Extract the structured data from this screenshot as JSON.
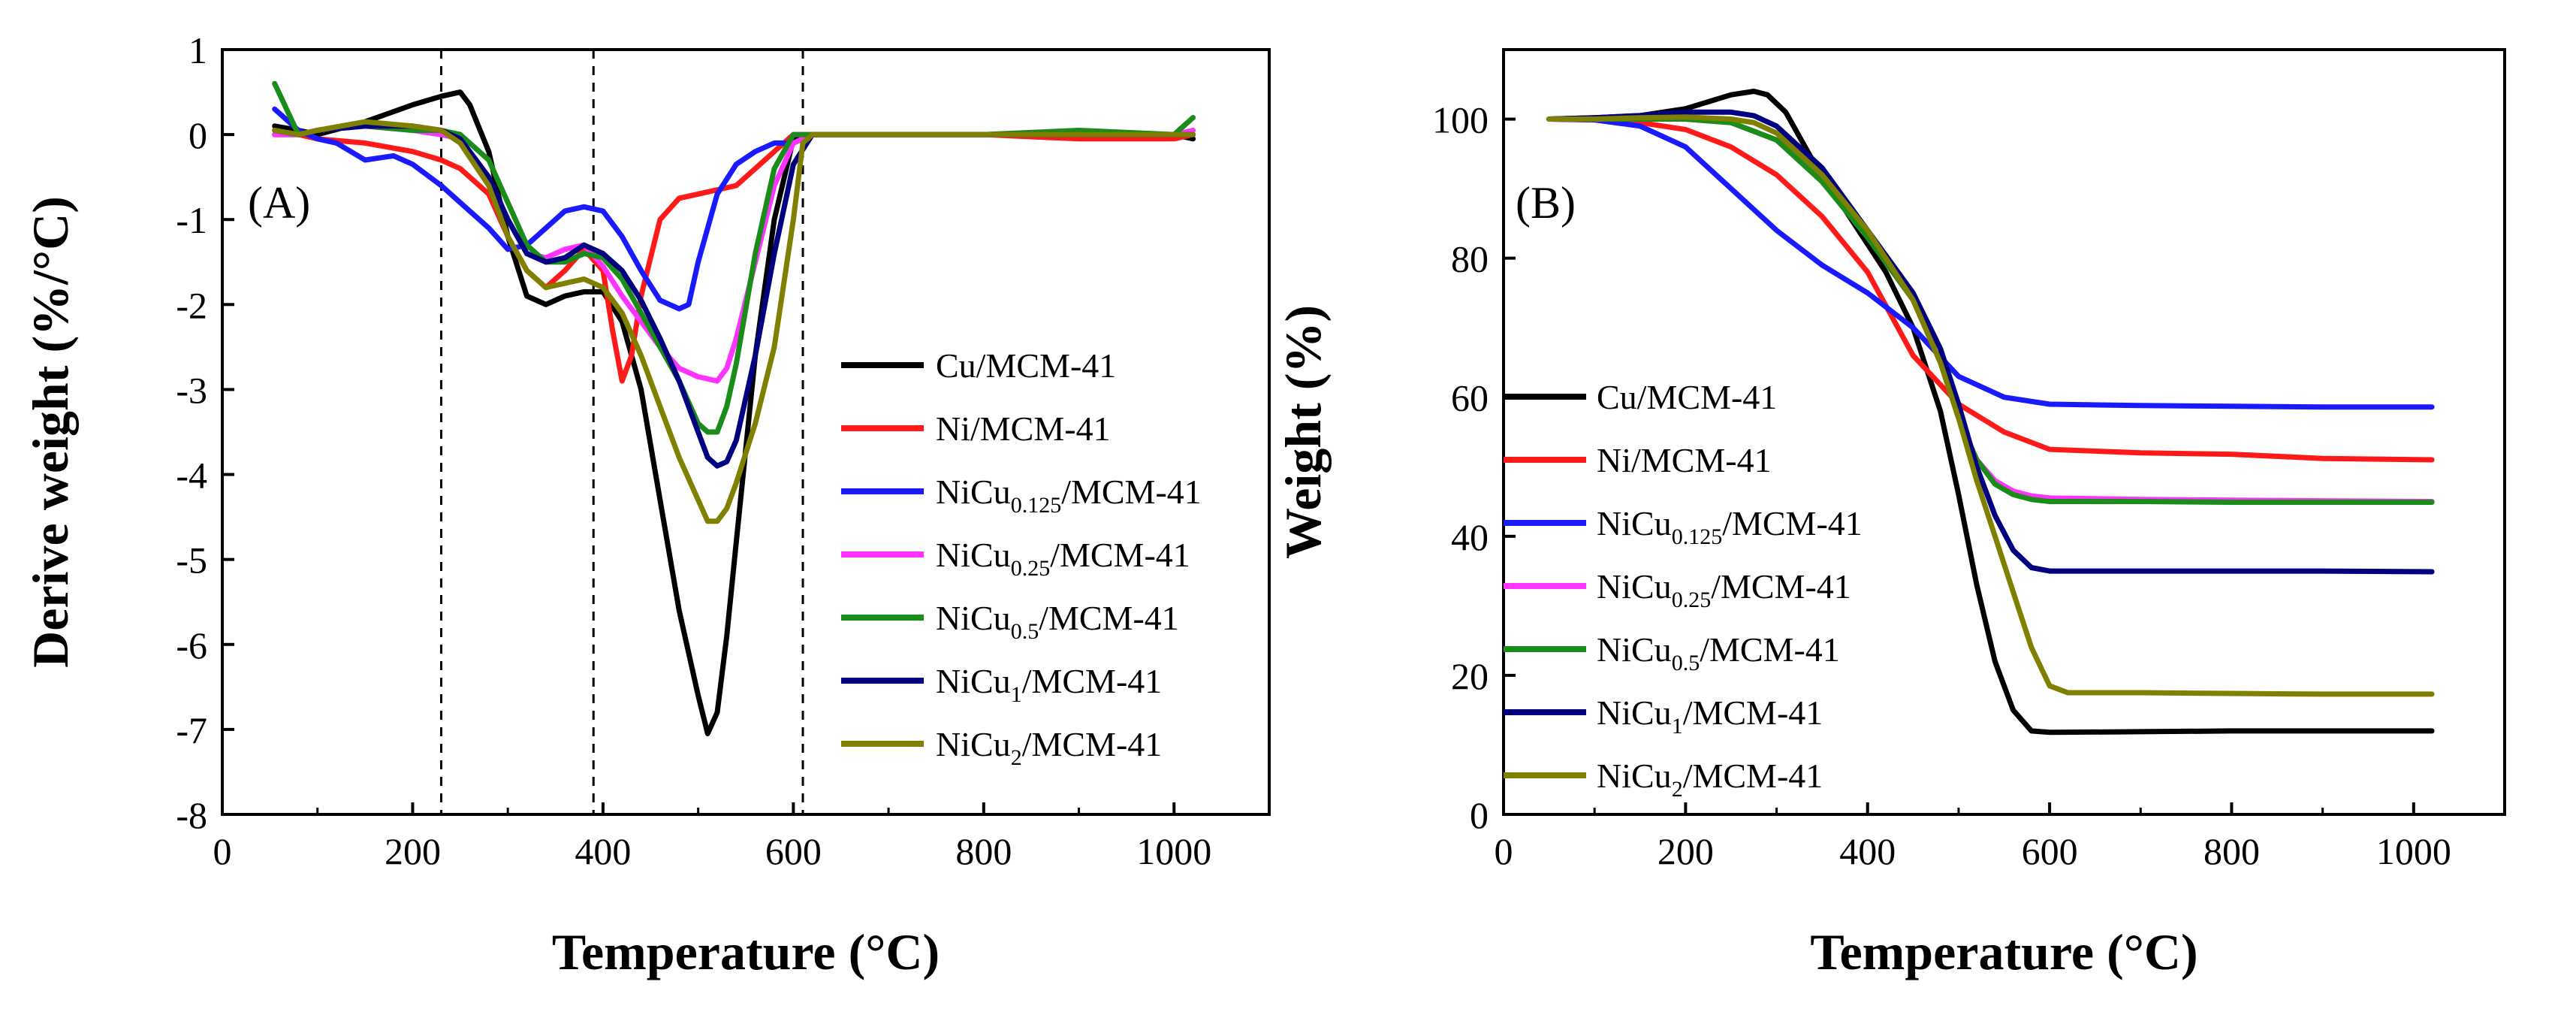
{
  "chart_data": [
    {
      "type": "line",
      "panel_label": "(A)",
      "xlabel": "Temperature (°C)",
      "ylabel": "Derive weight (%/°C)",
      "xlim": [
        0,
        1100
      ],
      "ylim": [
        -8,
        1
      ],
      "xticks": [
        0,
        200,
        400,
        600,
        800,
        1000
      ],
      "xtick_labels": [
        "0",
        "200",
        "400",
        "600",
        "800",
        "1000"
      ],
      "yticks": [
        1,
        0,
        -1,
        -2,
        -3,
        -4,
        -5,
        -6,
        -7,
        -8
      ],
      "ytick_labels": [
        "1",
        "0",
        "-1",
        "-2",
        "-3",
        "-4",
        "-5",
        "-6",
        "-7",
        "-8"
      ],
      "reference_lines_x": [
        230,
        390,
        610
      ],
      "legend_position": "center-right",
      "series": [
        {
          "name": "Cu/MCM-41",
          "parts": [
            {
              "t": "Cu/MCM-41"
            }
          ],
          "color": "#000000",
          "x": [
            55,
            80,
            100,
            150,
            200,
            230,
            250,
            260,
            280,
            300,
            320,
            340,
            360,
            380,
            400,
            420,
            440,
            460,
            480,
            500,
            510,
            520,
            530,
            540,
            560,
            580,
            600,
            620,
            700,
            800,
            900,
            1000,
            1020
          ],
          "y": [
            0.1,
            0.05,
            0,
            0.15,
            0.35,
            0.45,
            0.5,
            0.35,
            -0.2,
            -1.2,
            -1.9,
            -2.0,
            -1.9,
            -1.85,
            -1.85,
            -2.2,
            -3.0,
            -4.3,
            -5.6,
            -6.6,
            -7.05,
            -6.8,
            -5.9,
            -4.8,
            -2.6,
            -1.0,
            -0.05,
            0,
            0,
            0,
            0,
            0,
            -0.05
          ]
        },
        {
          "name": "Ni/MCM-41",
          "parts": [
            {
              "t": "Ni/MCM-41"
            }
          ],
          "color": "#ff1a1a",
          "x": [
            55,
            80,
            100,
            150,
            200,
            230,
            250,
            280,
            300,
            320,
            340,
            360,
            380,
            400,
            410,
            420,
            430,
            440,
            460,
            480,
            500,
            540,
            560,
            580,
            600,
            620,
            700,
            800,
            900,
            1000,
            1020
          ],
          "y": [
            0.0,
            0.0,
            -0.05,
            -0.1,
            -0.2,
            -0.3,
            -0.4,
            -0.7,
            -1.2,
            -1.6,
            -1.8,
            -1.6,
            -1.35,
            -1.6,
            -2.3,
            -2.9,
            -2.6,
            -1.9,
            -1.0,
            -0.75,
            -0.7,
            -0.6,
            -0.4,
            -0.2,
            0.0,
            0.0,
            0.0,
            0.0,
            -0.05,
            -0.05,
            0.0
          ]
        },
        {
          "name": "NiCu0.125/MCM-41",
          "parts": [
            {
              "t": "NiCu"
            },
            {
              "sub": "0.125"
            },
            {
              "t": "/MCM-41"
            }
          ],
          "color": "#1a1aff",
          "x": [
            55,
            80,
            100,
            120,
            150,
            180,
            200,
            230,
            250,
            280,
            300,
            320,
            340,
            360,
            380,
            400,
            420,
            440,
            460,
            480,
            490,
            500,
            520,
            540,
            560,
            580,
            600,
            620,
            700,
            800,
            900,
            1000,
            1020
          ],
          "y": [
            0.3,
            0.05,
            -0.05,
            -0.1,
            -0.3,
            -0.25,
            -0.35,
            -0.6,
            -0.8,
            -1.1,
            -1.35,
            -1.3,
            -1.1,
            -0.9,
            -0.85,
            -0.9,
            -1.2,
            -1.6,
            -1.95,
            -2.05,
            -2.0,
            -1.5,
            -0.7,
            -0.35,
            -0.2,
            -0.1,
            -0.1,
            0.0,
            0.0,
            0.0,
            0.0,
            0.0,
            0.0
          ]
        },
        {
          "name": "NiCu0.25/MCM-41",
          "parts": [
            {
              "t": "NiCu"
            },
            {
              "sub": "0.25"
            },
            {
              "t": "/MCM-41"
            }
          ],
          "color": "#ff33ff",
          "x": [
            55,
            80,
            100,
            150,
            200,
            230,
            250,
            280,
            300,
            320,
            340,
            360,
            380,
            400,
            420,
            440,
            460,
            480,
            500,
            520,
            530,
            540,
            560,
            580,
            600,
            620,
            700,
            800,
            900,
            1000,
            1020
          ],
          "y": [
            0.0,
            0.0,
            0.05,
            0.1,
            0.05,
            0.0,
            -0.05,
            -0.5,
            -1.0,
            -1.4,
            -1.45,
            -1.35,
            -1.3,
            -1.55,
            -1.9,
            -2.2,
            -2.5,
            -2.75,
            -2.85,
            -2.9,
            -2.75,
            -2.4,
            -1.5,
            -0.6,
            -0.1,
            0.0,
            0.0,
            0.0,
            0.0,
            0.0,
            0.05
          ]
        },
        {
          "name": "NiCu0.5/MCM-41",
          "parts": [
            {
              "t": "NiCu"
            },
            {
              "sub": "0.5"
            },
            {
              "t": "/MCM-41"
            }
          ],
          "color": "#1a8c1a",
          "x": [
            55,
            80,
            100,
            150,
            200,
            230,
            250,
            280,
            300,
            320,
            340,
            360,
            380,
            400,
            420,
            440,
            460,
            480,
            500,
            510,
            520,
            530,
            540,
            560,
            580,
            600,
            620,
            700,
            800,
            900,
            1000,
            1020
          ],
          "y": [
            0.6,
            0.0,
            0.05,
            0.1,
            0.05,
            0.05,
            0.0,
            -0.3,
            -0.8,
            -1.3,
            -1.5,
            -1.5,
            -1.4,
            -1.45,
            -1.7,
            -2.1,
            -2.5,
            -2.9,
            -3.4,
            -3.5,
            -3.5,
            -3.2,
            -2.7,
            -1.4,
            -0.4,
            0.0,
            0.0,
            0.0,
            0.0,
            0.05,
            0.0,
            0.2
          ]
        },
        {
          "name": "NiCu1/MCM-41",
          "parts": [
            {
              "t": "NiCu"
            },
            {
              "sub": "1"
            },
            {
              "t": "/MCM-41"
            }
          ],
          "color": "#000080",
          "x": [
            55,
            80,
            100,
            150,
            200,
            230,
            250,
            280,
            300,
            320,
            340,
            360,
            380,
            400,
            420,
            440,
            460,
            480,
            500,
            510,
            520,
            530,
            540,
            560,
            580,
            600,
            620,
            700,
            800,
            900,
            1000,
            1020
          ],
          "y": [
            0.05,
            0.0,
            0.05,
            0.1,
            0.1,
            0.05,
            -0.05,
            -0.5,
            -1.0,
            -1.4,
            -1.5,
            -1.45,
            -1.3,
            -1.4,
            -1.6,
            -1.95,
            -2.4,
            -2.9,
            -3.5,
            -3.8,
            -3.9,
            -3.85,
            -3.6,
            -2.6,
            -1.4,
            -0.35,
            0.0,
            0.0,
            0.0,
            0.0,
            0.0,
            0.0
          ]
        },
        {
          "name": "NiCu2/MCM-41",
          "parts": [
            {
              "t": "NiCu"
            },
            {
              "sub": "2"
            },
            {
              "t": "/MCM-41"
            }
          ],
          "color": "#808000",
          "x": [
            55,
            80,
            100,
            150,
            200,
            230,
            250,
            280,
            300,
            320,
            340,
            360,
            380,
            400,
            420,
            440,
            460,
            480,
            500,
            510,
            520,
            530,
            540,
            560,
            580,
            600,
            610,
            620,
            700,
            800,
            900,
            1000,
            1020
          ],
          "y": [
            0.05,
            0.0,
            0.05,
            0.15,
            0.1,
            0.05,
            -0.1,
            -0.6,
            -1.2,
            -1.6,
            -1.8,
            -1.75,
            -1.7,
            -1.8,
            -2.1,
            -2.6,
            -3.2,
            -3.8,
            -4.3,
            -4.55,
            -4.55,
            -4.4,
            -4.1,
            -3.4,
            -2.5,
            -1.0,
            -0.1,
            0.0,
            0.0,
            0.0,
            0.0,
            0.0,
            0.0
          ]
        }
      ]
    },
    {
      "type": "line",
      "panel_label": "(B)",
      "xlabel": "Temperature (°C)",
      "ylabel": "Weight (%)",
      "xlim": [
        0,
        1100
      ],
      "ylim": [
        0,
        110
      ],
      "xticks": [
        0,
        200,
        400,
        600,
        800,
        1000
      ],
      "xtick_labels": [
        "0",
        "200",
        "400",
        "600",
        "800",
        "1000"
      ],
      "yticks": [
        0,
        20,
        40,
        60,
        80,
        100
      ],
      "ytick_labels": [
        "0",
        "20",
        "40",
        "60",
        "80",
        "100"
      ],
      "legend_position": "center-left",
      "series": [
        {
          "name": "Cu/MCM-41",
          "parts": [
            {
              "t": "Cu/MCM-41"
            }
          ],
          "color": "#000000",
          "x": [
            50,
            100,
            150,
            200,
            250,
            275,
            290,
            310,
            340,
            380,
            420,
            450,
            480,
            500,
            520,
            540,
            560,
            580,
            600,
            700,
            800,
            900,
            1020
          ],
          "y": [
            100,
            100.2,
            100.5,
            101.5,
            103.5,
            104,
            103.5,
            101,
            94,
            86,
            78,
            70,
            58,
            46,
            33,
            22,
            15,
            12,
            11.8,
            11.9,
            12,
            12,
            12
          ]
        },
        {
          "name": "Ni/MCM-41",
          "parts": [
            {
              "t": "Ni/MCM-41"
            }
          ],
          "color": "#ff1a1a",
          "x": [
            50,
            100,
            150,
            200,
            250,
            300,
            350,
            400,
            450,
            500,
            550,
            600,
            700,
            800,
            900,
            1020
          ],
          "y": [
            100,
            99.9,
            99.5,
            98.5,
            96,
            92,
            86,
            78,
            66,
            59,
            55,
            52.5,
            52,
            51.8,
            51.2,
            51
          ]
        },
        {
          "name": "NiCu0.125/MCM-41",
          "parts": [
            {
              "t": "NiCu"
            },
            {
              "sub": "0.125"
            },
            {
              "t": "/MCM-41"
            }
          ],
          "color": "#1a1aff",
          "x": [
            50,
            100,
            150,
            200,
            250,
            300,
            350,
            400,
            450,
            500,
            550,
            600,
            700,
            800,
            900,
            1020
          ],
          "y": [
            100,
            99.9,
            99,
            96,
            90,
            84,
            79,
            75,
            70,
            63,
            60,
            59,
            58.8,
            58.7,
            58.6,
            58.6
          ]
        },
        {
          "name": "NiCu0.25/MCM-41",
          "parts": [
            {
              "t": "NiCu"
            },
            {
              "sub": "0.25"
            },
            {
              "t": "/MCM-41"
            }
          ],
          "color": "#ff33ff",
          "x": [
            50,
            100,
            150,
            200,
            250,
            300,
            350,
            400,
            450,
            480,
            500,
            520,
            540,
            560,
            580,
            600,
            700,
            800,
            900,
            1020
          ],
          "y": [
            100,
            100,
            100,
            100,
            99.5,
            97,
            91,
            83,
            74,
            65,
            57,
            51,
            48,
            46.5,
            45.8,
            45.5,
            45.3,
            45.2,
            45.1,
            45
          ]
        },
        {
          "name": "NiCu0.5/MCM-41",
          "parts": [
            {
              "t": "NiCu"
            },
            {
              "sub": "0.5"
            },
            {
              "t": "/MCM-41"
            }
          ],
          "color": "#1a8c1a",
          "x": [
            50,
            100,
            150,
            200,
            250,
            300,
            350,
            400,
            450,
            480,
            500,
            520,
            540,
            560,
            580,
            600,
            700,
            800,
            900,
            1020
          ],
          "y": [
            100,
            100,
            100,
            100,
            99.5,
            97,
            91,
            83,
            74,
            65,
            57,
            51,
            47.5,
            46,
            45.3,
            45,
            45,
            44.9,
            44.9,
            44.9
          ]
        },
        {
          "name": "NiCu1/MCM-41",
          "parts": [
            {
              "t": "NiCu"
            },
            {
              "sub": "1"
            },
            {
              "t": "/MCM-41"
            }
          ],
          "color": "#000080",
          "x": [
            50,
            100,
            150,
            200,
            250,
            275,
            300,
            350,
            400,
            450,
            480,
            500,
            520,
            540,
            560,
            580,
            600,
            700,
            800,
            900,
            1020
          ],
          "y": [
            100,
            100.2,
            100.5,
            101,
            101,
            100.5,
            99,
            93,
            84,
            75,
            67,
            59,
            50,
            43,
            38,
            35.5,
            35,
            35,
            35,
            35,
            34.9
          ]
        },
        {
          "name": "NiCu2/MCM-41",
          "parts": [
            {
              "t": "NiCu"
            },
            {
              "sub": "2"
            },
            {
              "t": "/MCM-41"
            }
          ],
          "color": "#808000",
          "x": [
            50,
            100,
            150,
            200,
            250,
            275,
            300,
            350,
            400,
            450,
            480,
            500,
            520,
            540,
            560,
            580,
            600,
            620,
            700,
            800,
            900,
            1020
          ],
          "y": [
            100,
            100,
            100.2,
            100.3,
            100,
            99.5,
            98,
            92,
            84,
            74,
            65,
            57,
            48,
            40,
            32,
            24,
            18.5,
            17.5,
            17.5,
            17.4,
            17.3,
            17.3
          ]
        }
      ]
    }
  ]
}
